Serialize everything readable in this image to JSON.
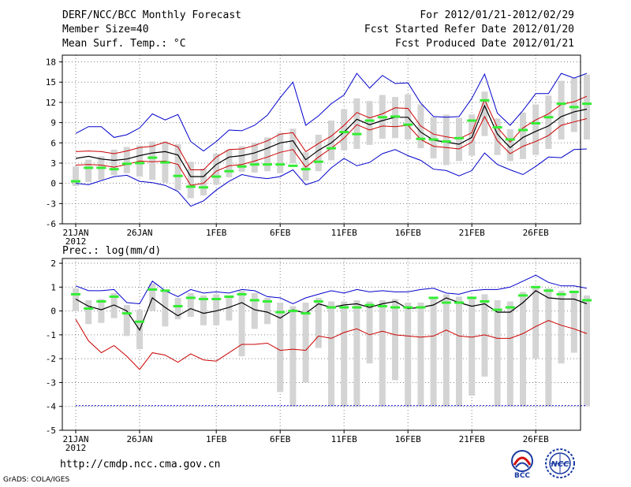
{
  "header": {
    "title": "DERF/NCC/BCC Monthly Forecast",
    "member_size": "Member Size=40",
    "variable": "Mean Surf. Temp.: °C",
    "period": "For 2012/01/21-2012/02/29",
    "started": "Fcst Started Refer Date 2012/01/20",
    "produced": "Fcst Produced Date 2012/01/21"
  },
  "footer": {
    "url": "http://cmdp.ncc.cma.gov.cn",
    "grads": "GrADS: COLA/IGES",
    "logo_bcc": "BCC",
    "logo_ncc": "NCC"
  },
  "colors": {
    "max_line": "#0000cc",
    "min_line": "#0000cc",
    "pct_lines": "#cc0000",
    "mean_line": "#000000",
    "boxes": "#d4d4d4",
    "median": "#33ee33",
    "grid": "#808080"
  },
  "chart_data": [
    {
      "type": "line",
      "title": "Mean Surf. Temp.: °C",
      "x_ticks": [
        "21JAN",
        "26JAN",
        "1FEB",
        "6FEB",
        "11FEB",
        "16FEB",
        "21FEB",
        "26FEB"
      ],
      "x_tick_days": [
        0,
        5,
        11,
        16,
        21,
        26,
        31,
        36
      ],
      "x_sub_label": "2012",
      "ylim": [
        -6,
        19
      ],
      "y_ticks": [
        -6,
        -3,
        0,
        3,
        6,
        9,
        12,
        15,
        18
      ],
      "series": [
        {
          "name": "max",
          "values": [
            7.4,
            8.4,
            8.4,
            6.8,
            7.2,
            8.2,
            10.3,
            9.4,
            10.2,
            6.2,
            4.8,
            6.2,
            7.9,
            7.8,
            8.6,
            10.1,
            12.7,
            15.0,
            8.6,
            10.0,
            11.8,
            13.1,
            16.3,
            14.1,
            16.0,
            14.8,
            14.9,
            11.9,
            9.9,
            9.8,
            9.9,
            12.6,
            16.2,
            10.4,
            8.6,
            10.8,
            13.3,
            13.3,
            16.3,
            15.6,
            16.3
          ]
        },
        {
          "name": "p75",
          "values": [
            4.7,
            4.8,
            4.7,
            4.4,
            4.8,
            5.3,
            5.5,
            6.1,
            5.4,
            2.0,
            2.0,
            3.9,
            5.0,
            5.1,
            5.6,
            6.3,
            7.3,
            7.5,
            4.7,
            5.9,
            7.0,
            8.6,
            10.5,
            9.7,
            10.3,
            11.2,
            11.1,
            8.5,
            7.3,
            6.9,
            6.6,
            7.5,
            12.4,
            8.3,
            6.1,
            8.2,
            9.4,
            10.3,
            11.7,
            12.1,
            12.9
          ]
        },
        {
          "name": "mean",
          "values": [
            3.7,
            4.0,
            3.6,
            3.4,
            3.6,
            4.1,
            4.5,
            4.7,
            4.2,
            1.0,
            1.0,
            2.8,
            3.9,
            4.1,
            4.5,
            5.2,
            6.0,
            6.3,
            3.5,
            4.9,
            6.0,
            7.6,
            9.5,
            8.7,
            9.3,
            9.8,
            9.8,
            7.6,
            6.4,
            6.1,
            5.8,
            6.8,
            11.5,
            7.3,
            5.3,
            6.8,
            7.7,
            8.5,
            9.9,
            10.6,
            11.0
          ]
        },
        {
          "name": "p25",
          "values": [
            2.7,
            2.8,
            2.7,
            2.4,
            2.8,
            3.3,
            3.2,
            3.3,
            2.8,
            -0.3,
            0.0,
            1.8,
            2.6,
            2.8,
            3.3,
            3.9,
            4.6,
            5.0,
            2.4,
            3.9,
            5.2,
            6.7,
            8.7,
            7.9,
            8.5,
            8.4,
            8.6,
            6.5,
            5.5,
            5.3,
            5.1,
            6.1,
            9.9,
            6.3,
            4.4,
            5.5,
            6.2,
            7.1,
            8.6,
            9.1,
            9.6
          ]
        },
        {
          "name": "min",
          "values": [
            0.0,
            -0.2,
            0.4,
            1.0,
            1.2,
            0.3,
            0.1,
            -0.3,
            -1.2,
            -3.4,
            -2.6,
            -1.0,
            0.3,
            1.3,
            0.9,
            0.7,
            1.0,
            2.0,
            -0.2,
            0.4,
            2.3,
            3.7,
            2.6,
            3.1,
            4.4,
            5.0,
            4.1,
            3.4,
            2.1,
            1.9,
            1.1,
            1.9,
            4.5,
            2.8,
            2.0,
            1.3,
            2.5,
            3.9,
            3.8,
            5.0,
            5.1
          ]
        }
      ],
      "boxes": {
        "low": [
          -0.4,
          0.2,
          0.5,
          1.2,
          1.5,
          1.0,
          0.5,
          0.1,
          -1.0,
          -2.2,
          -1.8,
          -0.2,
          0.9,
          1.7,
          1.6,
          1.8,
          1.5,
          3.0,
          0.4,
          1.8,
          3.4,
          4.9,
          5.1,
          5.7,
          6.6,
          6.7,
          6.5,
          5.2,
          3.7,
          2.7,
          3.3,
          4.1,
          7.0,
          4.2,
          3.3,
          3.6,
          4.2,
          5.1,
          6.5,
          7.6,
          6.5
        ],
        "high": [
          2.5,
          3.5,
          4.0,
          5.0,
          5.4,
          5.6,
          6.2,
          6.2,
          5.8,
          3.2,
          2.2,
          4.4,
          5.0,
          5.5,
          6.0,
          6.8,
          7.5,
          8.1,
          4.6,
          7.2,
          9.3,
          11.0,
          12.6,
          12.2,
          13.1,
          12.8,
          13.2,
          11.7,
          9.8,
          10.2,
          9.7,
          10.2,
          13.6,
          9.6,
          8.0,
          10.5,
          11.7,
          13.0,
          15.2,
          15.6,
          16.1
        ]
      },
      "median": [
        0.3,
        2.3,
        2.3,
        2.1,
        2.9,
        3.0,
        3.8,
        3.1,
        1.1,
        -0.5,
        -0.6,
        1.0,
        1.8,
        2.5,
        2.8,
        2.8,
        2.8,
        2.6,
        2.1,
        3.2,
        5.2,
        7.6,
        7.3,
        9.3,
        9.8,
        9.9,
        8.7,
        6.6,
        6.5,
        6.2,
        6.7,
        9.3,
        12.3,
        8.3,
        6.5,
        7.9,
        8.9,
        9.8,
        11.8,
        11.3,
        11.8
      ]
    },
    {
      "type": "line",
      "title": "Prec.: log(mm/d)",
      "x_ticks": [
        "21JAN",
        "26JAN",
        "1FEB",
        "6FEB",
        "11FEB",
        "16FEB",
        "21FEB",
        "26FEB"
      ],
      "x_tick_days": [
        0,
        5,
        11,
        16,
        21,
        26,
        31,
        36
      ],
      "x_sub_label": "2012",
      "ylim": [
        -5,
        2.2
      ],
      "y_ticks": [
        -5,
        -4,
        -3,
        -2,
        -1,
        0,
        1,
        2
      ],
      "series": [
        {
          "name": "max",
          "values": [
            1.05,
            0.85,
            0.85,
            0.9,
            0.35,
            0.3,
            1.25,
            0.85,
            0.6,
            0.9,
            0.75,
            0.8,
            0.75,
            0.9,
            0.85,
            0.6,
            0.55,
            0.3,
            0.55,
            0.7,
            0.85,
            0.75,
            0.9,
            0.8,
            0.85,
            0.8,
            0.8,
            0.9,
            0.95,
            0.75,
            0.7,
            0.85,
            0.9,
            0.9,
            1.0,
            1.25,
            1.5,
            1.2,
            1.05,
            1.05,
            0.95
          ]
        },
        {
          "name": "mean",
          "values": [
            0.5,
            0.2,
            0.05,
            0.25,
            0.0,
            -0.8,
            0.55,
            0.15,
            -0.2,
            0.1,
            -0.1,
            0.0,
            0.15,
            0.35,
            0.05,
            -0.05,
            -0.3,
            0.05,
            -0.1,
            0.3,
            0.15,
            0.25,
            0.3,
            0.15,
            0.3,
            0.4,
            0.1,
            0.15,
            0.25,
            0.55,
            0.35,
            0.2,
            0.3,
            -0.05,
            -0.05,
            0.35,
            0.85,
            0.55,
            0.5,
            0.5,
            0.3
          ]
        },
        {
          "name": "p_lower",
          "values": [
            -0.35,
            -1.25,
            -1.75,
            -1.45,
            -1.9,
            -2.45,
            -1.75,
            -1.85,
            -2.15,
            -1.8,
            -2.05,
            -2.1,
            -1.75,
            -1.4,
            -1.4,
            -1.35,
            -1.65,
            -1.6,
            -1.65,
            -1.05,
            -1.15,
            -0.9,
            -0.75,
            -1.0,
            -0.85,
            -1.0,
            -1.05,
            -1.1,
            -1.05,
            -0.8,
            -1.05,
            -1.1,
            -1.0,
            -1.15,
            -1.15,
            -0.95,
            -0.65,
            -0.4,
            -0.6,
            -0.75,
            -0.95
          ]
        },
        {
          "name": "floor",
          "values": [
            -3.97,
            -3.97,
            -3.97,
            -3.97,
            -3.97,
            -3.97,
            -3.97,
            -3.97,
            -3.97,
            -3.97,
            -3.97,
            -3.97,
            -3.97,
            -3.97,
            -3.97,
            -3.97,
            -3.97,
            -3.97,
            -3.97,
            -3.97,
            -3.97,
            -3.97,
            -3.97,
            -3.97,
            -3.97,
            -3.97,
            -3.97,
            -3.97,
            -3.97,
            -3.97,
            -3.97,
            -3.97,
            -3.97,
            -3.97,
            -3.97,
            -3.97,
            -3.97,
            -3.97,
            -3.97,
            -3.97,
            -3.97
          ]
        }
      ],
      "boxes": {
        "low": [
          0.0,
          -0.55,
          -0.5,
          -0.3,
          -1.05,
          -1.6,
          0.0,
          -0.65,
          -0.35,
          -0.25,
          -0.6,
          -0.6,
          -0.4,
          -1.9,
          -0.75,
          -0.55,
          -3.4,
          -4.0,
          -3.0,
          -1.55,
          -4.0,
          -4.0,
          -4.0,
          -2.2,
          -4.0,
          -2.9,
          -4.0,
          -4.0,
          -4.0,
          -4.0,
          -4.0,
          -3.55,
          -2.75,
          -4.0,
          -4.0,
          -4.0,
          -2.0,
          -4.0,
          -2.2,
          -1.75,
          -4.0
        ],
        "high": [
          0.95,
          0.45,
          0.5,
          0.75,
          0.25,
          0.05,
          1.15,
          0.9,
          0.55,
          0.75,
          0.65,
          0.7,
          0.6,
          0.85,
          0.75,
          0.55,
          0.35,
          0.2,
          0.35,
          0.55,
          0.4,
          0.4,
          0.45,
          0.4,
          0.45,
          0.5,
          0.35,
          0.35,
          0.5,
          0.7,
          0.6,
          0.55,
          0.7,
          0.45,
          0.4,
          0.8,
          1.05,
          0.95,
          0.85,
          0.85,
          0.65
        ]
      },
      "median": [
        0.7,
        0.1,
        0.4,
        0.6,
        -0.1,
        -0.45,
        0.9,
        0.85,
        0.2,
        0.55,
        0.5,
        0.5,
        0.6,
        0.7,
        0.45,
        0.4,
        -0.05,
        0.0,
        -0.1,
        0.4,
        0.15,
        0.15,
        0.15,
        0.25,
        0.2,
        0.15,
        0.15,
        0.15,
        0.55,
        0.35,
        0.35,
        0.55,
        0.4,
        0.05,
        0.15,
        0.65,
        1.0,
        0.85,
        0.7,
        0.8,
        0.45
      ]
    }
  ]
}
